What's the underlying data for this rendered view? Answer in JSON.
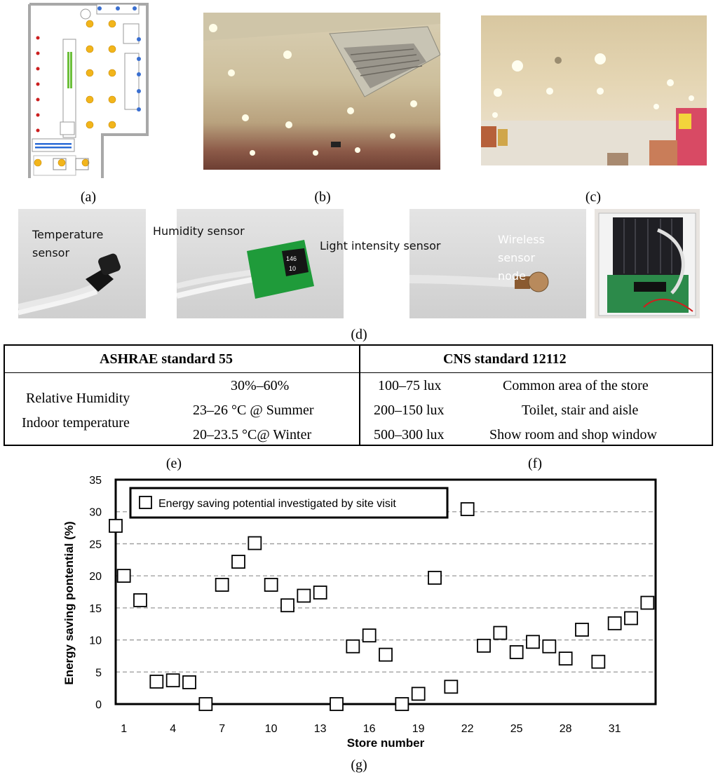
{
  "panels": {
    "a": "(a)",
    "b": "(b)",
    "c": "(c)",
    "d": "(d)",
    "e": "(e)",
    "f": "(f)",
    "g": "(g)"
  },
  "sensors": {
    "temperature": "Temperature sensor",
    "humidity": "Humidity sensor",
    "light": "Light intensity sensor",
    "wireless": "Wireless sensor node",
    "chip_top": "146",
    "chip_bottom": "10"
  },
  "table": {
    "ashrae_title": "ASHRAE standard 55",
    "rh_label": "Relative Humidity",
    "temp_label": "Indoor temperature",
    "rh_value": "30%–60%",
    "summer_value": "23–26 °C @ Summer",
    "winter_value": "20–23.5 °C@ Winter",
    "cns_title": "CNS standard 12112",
    "rows": [
      {
        "lux": "100–75 lux",
        "area": "Common area of the store"
      },
      {
        "lux": "200–150 lux",
        "area": "Toilet, stair and aisle"
      },
      {
        "lux": "500–300 lux",
        "area": "Show room and shop window"
      }
    ]
  },
  "chart_data": {
    "type": "scatter",
    "xlabel": "Store number",
    "ylabel": "Energy saving pontential (%)",
    "legend": "Energy saving potential investigated by site visit",
    "legend_position": "top-left",
    "ylim": [
      0,
      35
    ],
    "yticks": [
      0,
      5,
      10,
      15,
      20,
      25,
      30,
      35
    ],
    "xticks": [
      1,
      4,
      7,
      10,
      13,
      16,
      19,
      22,
      25,
      28,
      31
    ],
    "xlim": [
      0.5,
      33.5
    ],
    "grid": "horizontal dashed",
    "series": [
      {
        "marker": "open-square",
        "x": [
          0.5,
          1,
          2,
          3,
          4,
          5,
          6,
          7,
          8,
          9,
          10,
          11,
          12,
          13,
          14,
          15,
          16,
          17,
          18,
          19,
          20,
          21,
          22,
          23,
          24,
          25,
          26,
          27,
          28,
          29,
          30,
          31,
          32,
          33
        ],
        "y": [
          27.8,
          20.0,
          16.2,
          3.5,
          3.7,
          3.4,
          0.0,
          18.6,
          22.2,
          25.1,
          18.6,
          15.4,
          16.9,
          17.4,
          0.0,
          9.0,
          10.7,
          7.7,
          0.0,
          1.6,
          19.7,
          2.7,
          30.4,
          9.1,
          11.1,
          8.1,
          9.7,
          9.0,
          7.1,
          11.6,
          6.6,
          12.6,
          13.4,
          15.8
        ]
      }
    ]
  }
}
